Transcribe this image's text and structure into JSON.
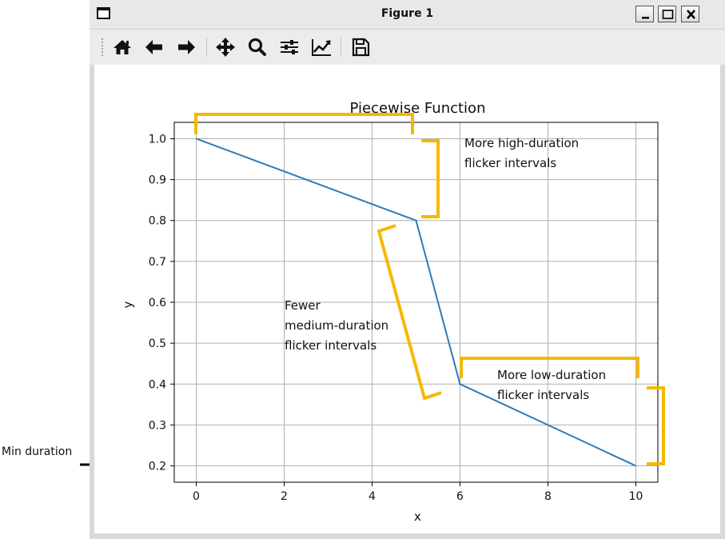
{
  "window": {
    "title": "Figure 1"
  },
  "toolbar": {
    "buttons": [
      {
        "id": "home",
        "icon": "home-icon"
      },
      {
        "id": "back",
        "icon": "arrow-left-icon"
      },
      {
        "id": "forward",
        "icon": "arrow-right-icon"
      },
      {
        "id": "pan",
        "icon": "move-icon"
      },
      {
        "id": "zoom",
        "icon": "magnifier-icon"
      },
      {
        "id": "configure",
        "icon": "sliders-icon"
      },
      {
        "id": "edit-axes",
        "icon": "line-chart-icon"
      },
      {
        "id": "save",
        "icon": "floppy-disk-icon"
      }
    ]
  },
  "annotations": {
    "min_duration": "Min duration",
    "high": [
      "More high-duration",
      "flicker intervals"
    ],
    "medium": [
      "Fewer",
      "medium-duration",
      "flicker intervals"
    ],
    "low": [
      "More low-duration",
      "flicker intervals"
    ],
    "bracket_color": "#f5b800"
  },
  "chart_data": {
    "type": "line",
    "title": "Piecewise Function",
    "xlabel": "x",
    "ylabel": "y",
    "xlim": [
      -0.5,
      10.5
    ],
    "ylim": [
      0.16,
      1.04
    ],
    "xticks": [
      0,
      2,
      4,
      6,
      8,
      10
    ],
    "yticks": [
      0.2,
      0.3,
      0.4,
      0.5,
      0.6,
      0.7,
      0.8,
      0.9,
      1.0
    ],
    "xtick_labels": [
      "0",
      "2",
      "4",
      "6",
      "8",
      "10"
    ],
    "ytick_labels": [
      "0.2",
      "0.3",
      "0.4",
      "0.5",
      "0.6",
      "0.7",
      "0.8",
      "0.9",
      "1.0"
    ],
    "grid": true,
    "line_color": "#2f7bb5",
    "series": [
      {
        "x": [
          0,
          5,
          6,
          10
        ],
        "y": [
          1.0,
          0.8,
          0.4,
          0.2
        ]
      }
    ]
  }
}
